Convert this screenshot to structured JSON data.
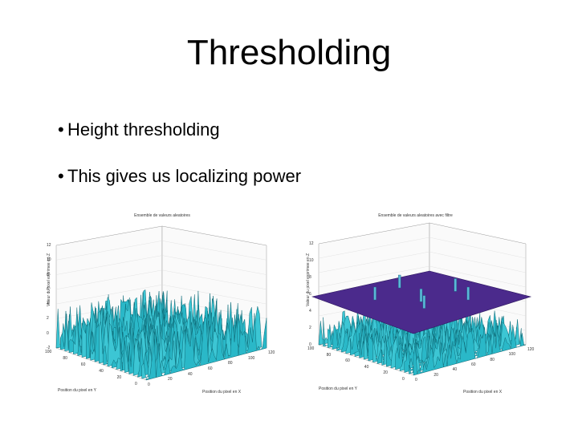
{
  "slide": {
    "title": "Thresholding",
    "bullets": [
      "Height thresholding",
      "This gives us localizing power"
    ]
  },
  "figures": [
    {
      "title": "Ensemble de valeurs aleatoires",
      "zlabel": "Valeur du pixel exprimee en Z",
      "ylabel": "Position du pixel en Y",
      "xlabel": "Position du pixel en X",
      "z_ticks": [
        "12",
        "10",
        "8",
        "6",
        "4",
        "2",
        "0",
        "-2"
      ],
      "y_ticks": [
        "100",
        "80",
        "60",
        "40",
        "20",
        "0"
      ],
      "x_ticks": [
        "0",
        "20",
        "40",
        "60",
        "80",
        "100",
        "120"
      ],
      "threshold_plane": false
    },
    {
      "title": "Ensemble de valeurs aleatoires avec filtre",
      "zlabel": "Valeur du pixel exprimee en Z",
      "ylabel": "Position du pixel en Y",
      "xlabel": "Position du pixel en X",
      "z_ticks": [
        "12",
        "10",
        "8",
        "6",
        "4",
        "2",
        "0"
      ],
      "y_ticks": [
        "100",
        "80",
        "60",
        "40",
        "20",
        "0"
      ],
      "x_ticks": [
        "0",
        "20",
        "40",
        "60",
        "80",
        "100",
        "120"
      ],
      "threshold_plane": true
    }
  ],
  "colors": {
    "surface": "#2ab8c8",
    "surface_dark": "#0f6d7a",
    "plane": "#4b2a8c",
    "axes": "#999999"
  }
}
